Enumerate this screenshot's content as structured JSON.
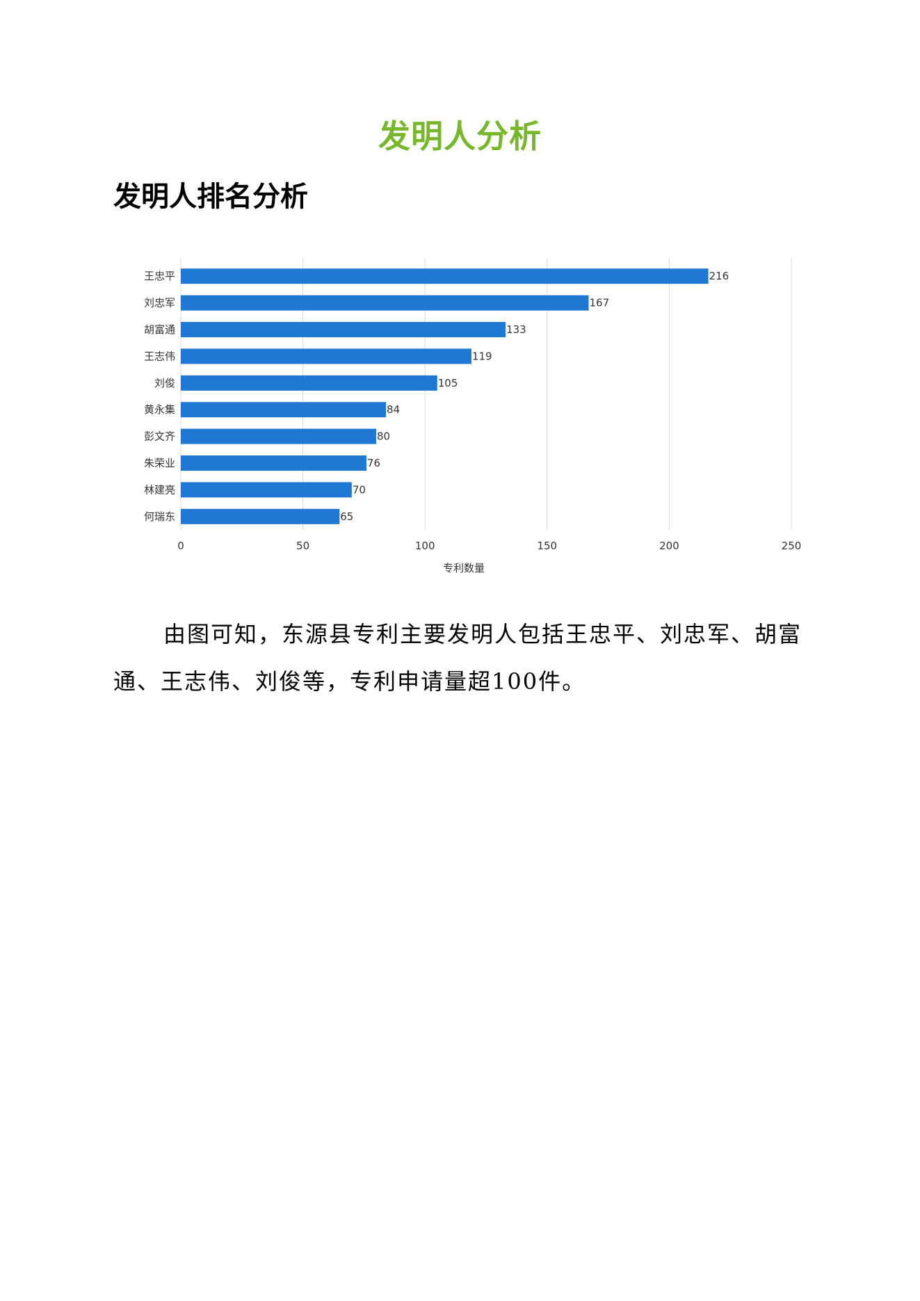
{
  "page": {
    "title": "发明人分析",
    "section_heading": "发明人排名分析",
    "paragraph": "由图可知，东源县专利主要发明人包括王忠平、刘忠军、胡富通、王志伟、刘俊等，专利申请量超100件。"
  },
  "colors": {
    "title": "#76b82a",
    "bar": "#1f78d1",
    "grid": "#d9d9d9"
  },
  "chart_data": {
    "type": "bar",
    "orientation": "horizontal",
    "categories": [
      "王忠平",
      "刘忠军",
      "胡富通",
      "王志伟",
      "刘俊",
      "黄永集",
      "彭文齐",
      "朱荣业",
      "林建亮",
      "何瑞东"
    ],
    "values": [
      216,
      167,
      133,
      119,
      105,
      84,
      80,
      76,
      70,
      65
    ],
    "title": "",
    "xlabel": "专利数量",
    "ylabel": "",
    "xlim": [
      0,
      250
    ],
    "xticks": [
      0,
      50,
      100,
      150,
      200,
      250
    ],
    "grid": true,
    "legend": "none",
    "data_labels": true
  }
}
